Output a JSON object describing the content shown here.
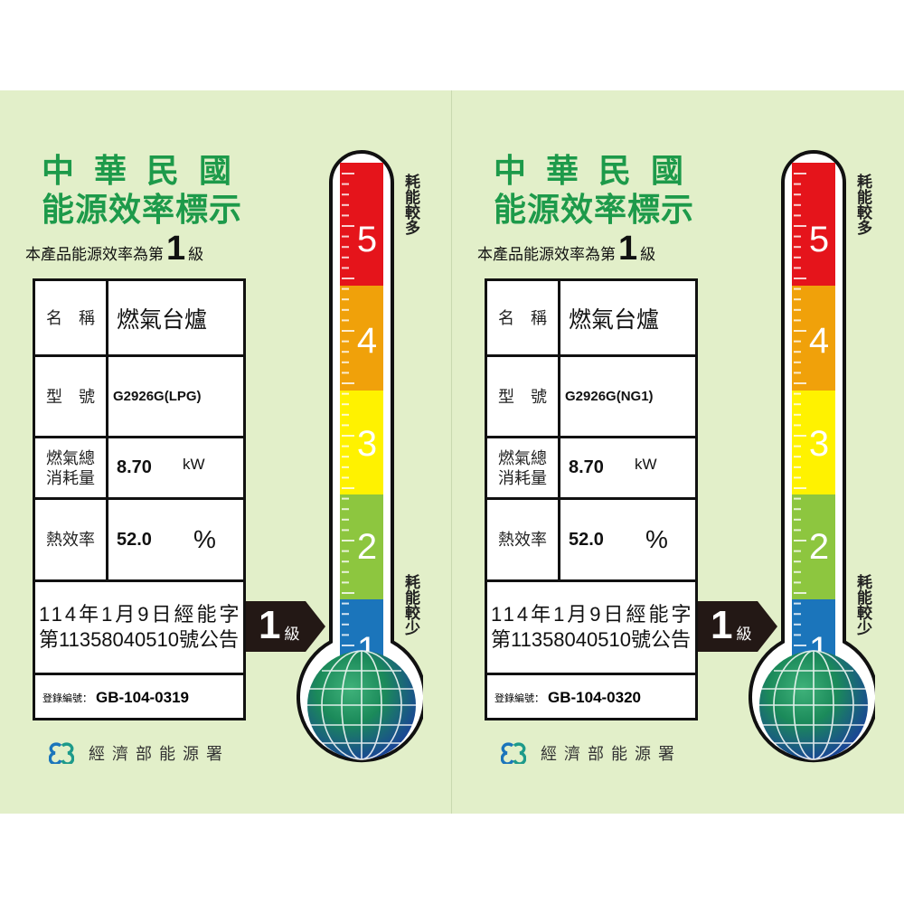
{
  "labels": [
    {
      "title_line1": "中華民國",
      "title_line2": "能源效率標示",
      "grade_prefix": "本產品能源效率為第",
      "grade": "1",
      "grade_suffix": "級",
      "name_label": "名　稱",
      "name_value": "燃氣台爐",
      "model_label": "型　號",
      "model_value": "G2926G(LPG)",
      "consumption_label": "燃氣總消耗量",
      "consumption_value": "8.70",
      "consumption_unit": "kW",
      "efficiency_label": "熱效率",
      "efficiency_value": "52.0",
      "efficiency_unit": "%",
      "announce_line1": "114年1月9日經能字",
      "announce_line2": "第11358040510號公告",
      "reg_label": "登錄編號：",
      "reg_value": "GB-104-0319",
      "arrow_grade": "1",
      "arrow_suffix": "級",
      "scale_top": "耗能較多",
      "scale_bottom": "耗能較少",
      "scale_numbers": [
        "5",
        "4",
        "3",
        "2",
        "1"
      ],
      "agency": "經濟部能源署"
    },
    {
      "title_line1": "中華民國",
      "title_line2": "能源效率標示",
      "grade_prefix": "本產品能源效率為第",
      "grade": "1",
      "grade_suffix": "級",
      "name_label": "名　稱",
      "name_value": "燃氣台爐",
      "model_label": "型　號",
      "model_value": "G2926G(NG1)",
      "consumption_label": "燃氣總消耗量",
      "consumption_value": "8.70",
      "consumption_unit": "kW",
      "efficiency_label": "熱效率",
      "efficiency_value": "52.0",
      "efficiency_unit": "%",
      "announce_line1": "114年1月9日經能字",
      "announce_line2": "第11358040510號公告",
      "reg_label": "登錄編號：",
      "reg_value": "GB-104-0320",
      "arrow_grade": "1",
      "arrow_suffix": "級",
      "scale_top": "耗能較多",
      "scale_bottom": "耗能較少",
      "scale_numbers": [
        "5",
        "4",
        "3",
        "2",
        "1"
      ],
      "agency": "經濟部能源署"
    }
  ],
  "colors": {
    "background": "#e2efc9",
    "title_green": "#1d9a4a",
    "grade5": "#e5141b",
    "grade4": "#f0a10a",
    "grade3": "#fff200",
    "grade2": "#8dc63f",
    "grade1": "#1b75bb"
  }
}
